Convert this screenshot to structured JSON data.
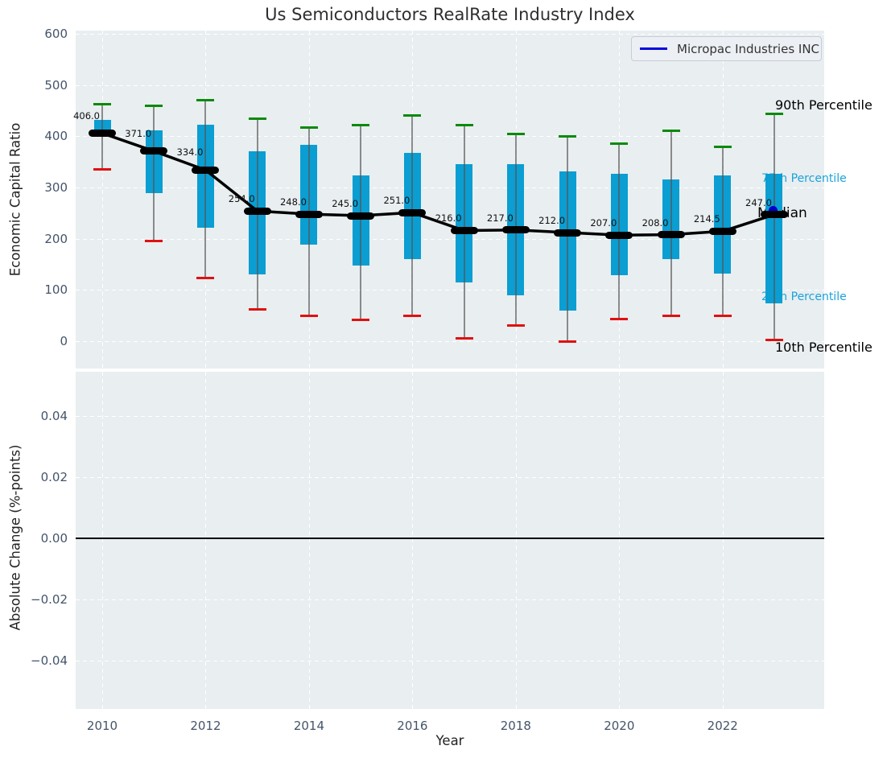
{
  "chart_data": {
    "type": "boxplot",
    "title": "Us Semiconductors RealRate Industry Index",
    "xlabel": "Year",
    "legend": {
      "label": "Micropac Industries INC",
      "line_color": "#0505dd",
      "position": "upper right"
    },
    "xticks": [
      "2010",
      "2012",
      "2014",
      "2016",
      "2018",
      "2020",
      "2022"
    ],
    "xtick_values": [
      2010,
      2012,
      2014,
      2016,
      2018,
      2020,
      2022
    ],
    "xlim": [
      2009.5,
      2023.85
    ],
    "top_panel": {
      "ylabel": "Economic Capital Ratio",
      "yticks": [
        "600",
        "500",
        "400",
        "300",
        "200",
        "100",
        "0"
      ],
      "ytick_values": [
        600,
        500,
        400,
        300,
        200,
        100,
        0
      ],
      "ylim": [
        -53,
        606
      ],
      "grid": true,
      "years": [
        2010,
        2011,
        2012,
        2013,
        2014,
        2015,
        2016,
        2017,
        2018,
        2019,
        2020,
        2021,
        2022,
        2023
      ],
      "median": [
        406,
        371,
        334,
        254,
        248,
        245,
        251,
        216,
        217,
        212,
        207,
        208,
        214.5,
        247
      ],
      "median_labels": [
        "406.0",
        "371.0",
        "334.0",
        "254.0",
        "248.0",
        "245.0",
        "251.0",
        "216.0",
        "217.0",
        "212.0",
        "207.0",
        "208.0",
        "214.5",
        "247.0"
      ],
      "p75": [
        432,
        412,
        422,
        371,
        384,
        324,
        367,
        346,
        346,
        331,
        326,
        316,
        324,
        327
      ],
      "p25": [
        401,
        289,
        221,
        131,
        188,
        148,
        160,
        115,
        90,
        60,
        128,
        160,
        132,
        74
      ],
      "p90": [
        463,
        459,
        470,
        434,
        417,
        421,
        441,
        422,
        404,
        399,
        386,
        411,
        380,
        443
      ],
      "p10": [
        335,
        196,
        124,
        62,
        50,
        41,
        49,
        6,
        30,
        0,
        43,
        50,
        50,
        3
      ],
      "company_point": {
        "name": "Micropac Industries INC",
        "year": 2023,
        "value": 256
      },
      "annotations": [
        {
          "text": "90th Percentile",
          "color": "#000000",
          "x": 963,
          "y": 132,
          "size": 16
        },
        {
          "text": "75th Percentile",
          "color": "#1ba3dc",
          "x": 946,
          "y": 223,
          "size": 14
        },
        {
          "text": "Median",
          "color": "#000000",
          "x": 941,
          "y": 267,
          "size": 17
        },
        {
          "text": "25th Percentile",
          "color": "#1ba3dc",
          "x": 946,
          "y": 370,
          "size": 14
        },
        {
          "text": "10th Percentile",
          "color": "#000000",
          "x": 963,
          "y": 433,
          "size": 16
        }
      ]
    },
    "bottom_panel": {
      "ylabel": "Absolute Change (%-points)",
      "yticks": [
        "0.04",
        "0.02",
        "0.00",
        "−0.02",
        "−0.04"
      ],
      "ytick_values": [
        0.04,
        0.02,
        0.0,
        -0.02,
        -0.04
      ],
      "ylim": [
        -0.0555,
        0.0542
      ],
      "grid": true,
      "zero_line": true
    },
    "colors": {
      "box_fill": "#0a9ed2",
      "p90_cap": "#0a8a0a",
      "p10_cap": "#e01010",
      "whisker": "#555555",
      "median": "#000000",
      "company": "#0000cc",
      "panel_bg": "#e9eef0",
      "grid": "#ffffff",
      "tick_label": "#44546a"
    }
  }
}
